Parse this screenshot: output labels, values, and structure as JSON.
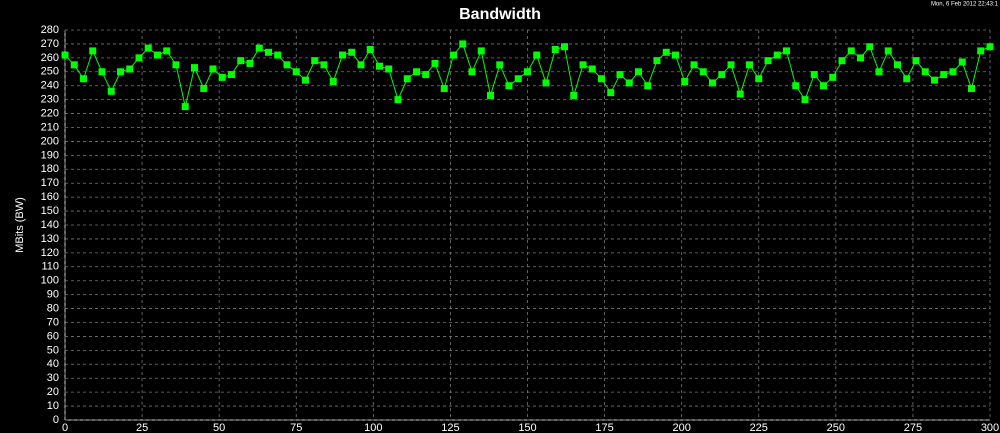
{
  "chart_data": {
    "type": "line",
    "title": "Bandwidth",
    "timestamp": "Mon, 6 Feb 2012 22:43:1",
    "y_label": "MBits (BW)",
    "x": [
      0,
      3,
      6,
      9,
      12,
      15,
      18,
      21,
      24,
      27,
      30,
      33,
      36,
      39,
      42,
      45,
      48,
      51,
      54,
      57,
      60,
      63,
      66,
      69,
      72,
      75,
      78,
      81,
      84,
      87,
      90,
      93,
      96,
      99,
      102,
      105,
      108,
      111,
      114,
      117,
      120,
      123,
      126,
      129,
      132,
      135,
      138,
      141,
      144,
      147,
      150,
      153,
      156,
      159,
      162,
      165,
      168,
      171,
      174,
      177,
      180,
      183,
      186,
      189,
      192,
      195,
      198,
      201,
      204,
      207,
      210,
      213,
      216,
      219,
      222,
      225,
      228,
      231,
      234,
      237,
      240,
      243,
      246,
      249,
      252,
      255,
      258,
      261,
      264,
      267,
      270,
      273,
      276,
      279,
      282,
      285,
      288,
      291,
      294,
      297,
      300
    ],
    "series": [
      {
        "name": "BW",
        "color": "#00ff00",
        "values": [
          262,
          255,
          245,
          265,
          250,
          236,
          250,
          252,
          260,
          267,
          262,
          265,
          255,
          225,
          253,
          238,
          252,
          246,
          248,
          258,
          256,
          267,
          264,
          262,
          255,
          250,
          244,
          258,
          255,
          243,
          262,
          264,
          255,
          266,
          254,
          252,
          230,
          245,
          250,
          248,
          256,
          238,
          262,
          270,
          250,
          265,
          233,
          255,
          240,
          245,
          250,
          262,
          242,
          266,
          268,
          233,
          255,
          252,
          245,
          235,
          248,
          242,
          250,
          240,
          258,
          264,
          262,
          243,
          255,
          250,
          242,
          248,
          255,
          234,
          255,
          245,
          258,
          262,
          265,
          240,
          230,
          248,
          240,
          246,
          258,
          265,
          260,
          268,
          250,
          265,
          255,
          245,
          258,
          250,
          244,
          248,
          250,
          257,
          238,
          265,
          268
        ]
      }
    ],
    "xlim": [
      0,
      300
    ],
    "xticks": [
      0,
      25,
      50,
      75,
      100,
      125,
      150,
      175,
      200,
      225,
      250,
      275,
      300
    ],
    "ylim": [
      0,
      280
    ],
    "yticks": [
      0,
      10,
      20,
      30,
      40,
      50,
      60,
      70,
      80,
      90,
      100,
      110,
      120,
      130,
      140,
      150,
      160,
      170,
      180,
      190,
      200,
      210,
      220,
      230,
      240,
      250,
      260,
      270,
      280
    ],
    "grid": true
  }
}
